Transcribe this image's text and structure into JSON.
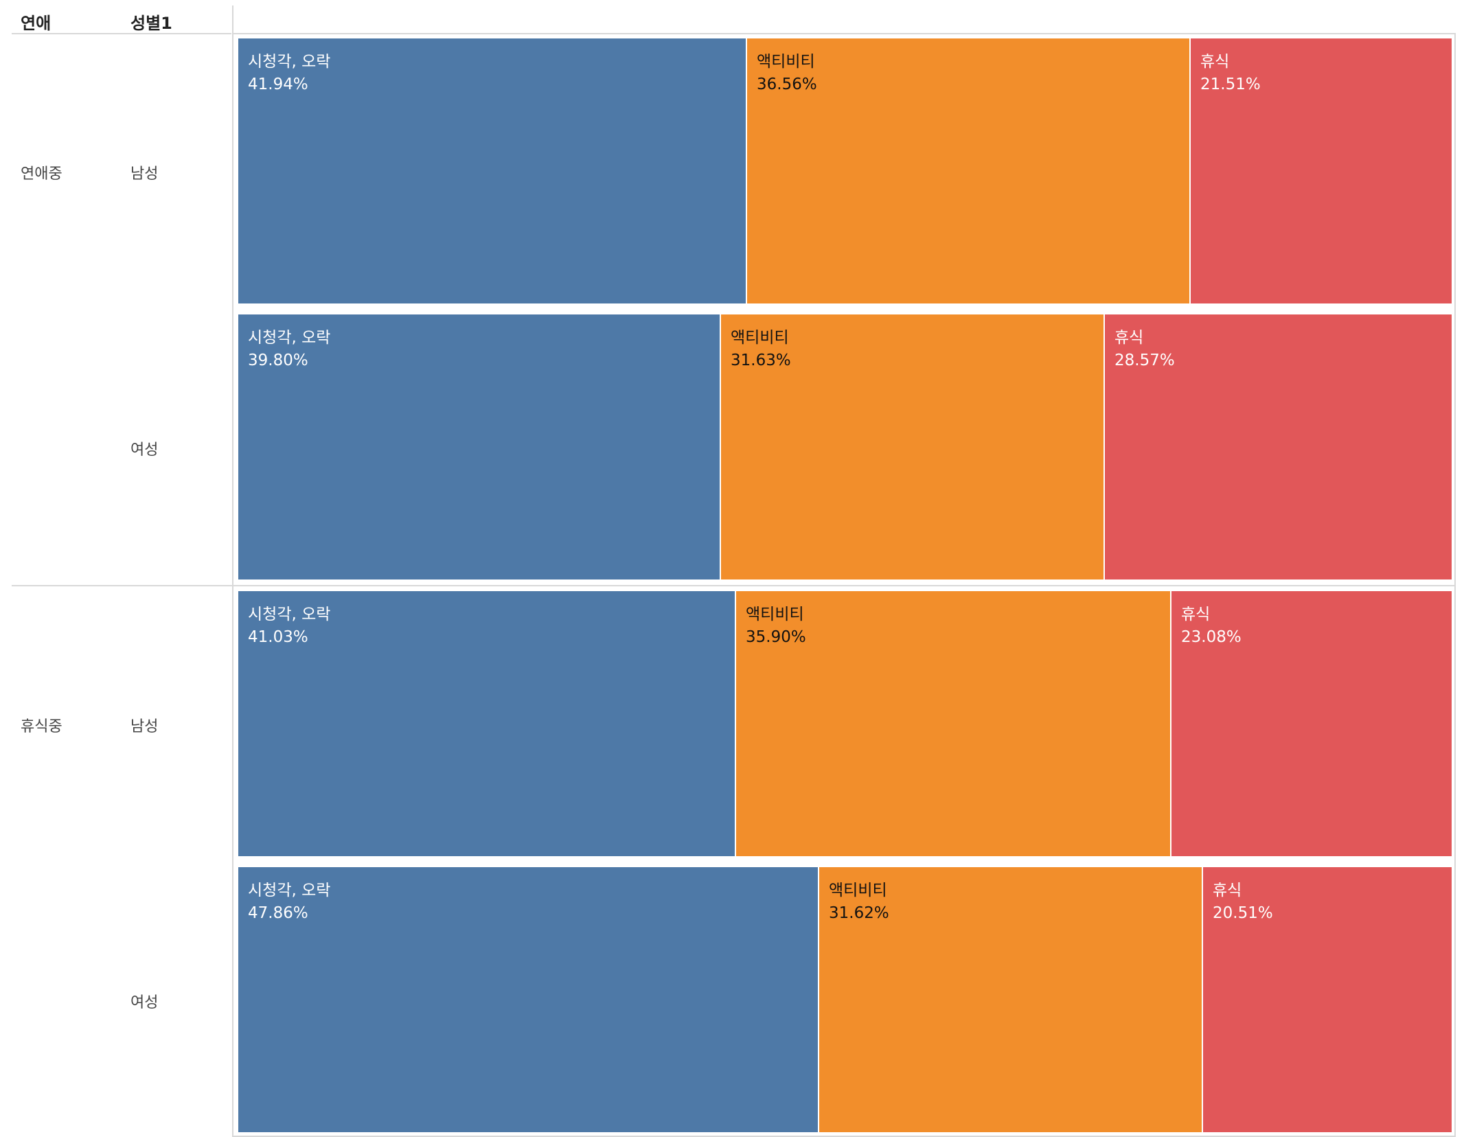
{
  "headers": {
    "col1": "연애",
    "col2": "성별1"
  },
  "colors": {
    "시청각, 오락": "#4e79a7",
    "액티비티": "#f28e2b",
    "휴식": "#e15759"
  },
  "label_colors": {
    "시청각, 오락": "#ffffff",
    "액티비티": "#111111",
    "휴식": "#ffffff"
  },
  "chart_data": {
    "type": "bar",
    "subtype": "100% stacked horizontal (marimekko-style)",
    "row_dimensions": [
      "연애",
      "성별1"
    ],
    "categories": [
      "시청각, 오락",
      "액티비티",
      "휴식"
    ],
    "rows": [
      {
        "group": "연애중",
        "gender": "남성",
        "values": [
          41.94,
          36.56,
          21.51
        ],
        "labels": [
          "41.94%",
          "36.56%",
          "21.51%"
        ]
      },
      {
        "group": "연애중",
        "gender": "여성",
        "values": [
          39.8,
          31.63,
          28.57
        ],
        "labels": [
          "39.80%",
          "31.63%",
          "28.57%"
        ]
      },
      {
        "group": "휴식중",
        "gender": "남성",
        "values": [
          41.03,
          35.9,
          23.08
        ],
        "labels": [
          "41.03%",
          "35.90%",
          "23.08%"
        ]
      },
      {
        "group": "휴식중",
        "gender": "여성",
        "values": [
          47.86,
          31.62,
          20.51
        ],
        "labels": [
          "47.86%",
          "31.62%",
          "20.51%"
        ]
      }
    ],
    "groups": [
      {
        "name": "연애중",
        "rows": [
          0,
          1
        ]
      },
      {
        "name": "휴식중",
        "rows": [
          2,
          3
        ]
      }
    ],
    "unit": "%",
    "grid": false,
    "legend": "none"
  }
}
